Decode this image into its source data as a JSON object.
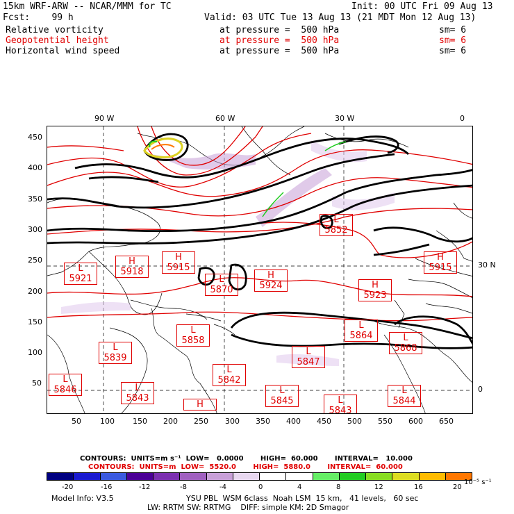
{
  "header": {
    "model_line": "15km WRF-ARW -- NCAR/MMM for TC",
    "init_line": "Init: 00 UTC Fri 09 Aug 13",
    "fcst_line": "Fcst:    99 h",
    "valid_line": "Valid: 03 UTC Tue 13 Aug 13 (21 MDT Mon 12 Aug 13)"
  },
  "fields": [
    {
      "name": "Relative vorticity",
      "level": "at pressure =  500 hPa",
      "sm": "sm= 6",
      "color": "#000000"
    },
    {
      "name": "Geopotential height",
      "level": "at pressure =  500 hPa",
      "sm": "sm= 6",
      "color": "#e00000"
    },
    {
      "name": "Horizontal wind speed",
      "level": "at pressure =  500 hPa",
      "sm": "sm= 6",
      "color": "#000000"
    }
  ],
  "map": {
    "top_labels": [
      "90 W",
      "60 W",
      "30 W",
      "0"
    ],
    "right_labels": [
      "30 N",
      "0"
    ],
    "y_ticks": [
      "450",
      "400",
      "350",
      "300",
      "250",
      "200",
      "150",
      "100",
      "50"
    ],
    "x_ticks": [
      "50",
      "100",
      "150",
      "200",
      "250",
      "300",
      "350",
      "400",
      "450",
      "500",
      "550",
      "600",
      "650"
    ],
    "centers": [
      {
        "type": "L",
        "value": "5852"
      },
      {
        "type": "L",
        "value": "5921"
      },
      {
        "type": "H",
        "value": "5918"
      },
      {
        "type": "H",
        "value": "5915"
      },
      {
        "type": "L",
        "value": "5870"
      },
      {
        "type": "H",
        "value": "5924"
      },
      {
        "type": "H",
        "value": "5923"
      },
      {
        "type": "H",
        "value": "5915"
      },
      {
        "type": "L",
        "value": "5858"
      },
      {
        "type": "L",
        "value": "5864"
      },
      {
        "type": "L",
        "value": "5839"
      },
      {
        "type": "L",
        "value": "5847"
      },
      {
        "type": "L",
        "value": "5868"
      },
      {
        "type": "L",
        "value": "5846"
      },
      {
        "type": "L",
        "value": "5842"
      },
      {
        "type": "L",
        "value": "5843"
      },
      {
        "type": "L",
        "value": "5845"
      },
      {
        "type": "L",
        "value": "5844"
      },
      {
        "type": "H",
        "value": ""
      },
      {
        "type": "L",
        "value": "5843"
      }
    ]
  },
  "contours": {
    "black_line": "CONTOURS:  UNITS=m s⁻¹  LOW=   0.0000       HIGH=  60.000       INTERVAL=   10.000",
    "red_line": "CONTOURS:  UNITS=m  LOW=  5520.0       HIGH=  5880.0       INTERVAL=  60.000"
  },
  "colorbar": {
    "colors": [
      "#000080",
      "#1a1ad0",
      "#3a5ae0",
      "#4b0096",
      "#7b2fb0",
      "#a060c0",
      "#c8a0d8",
      "#e8d8f0",
      "#ffffff",
      "#ffffff",
      "#66ee66",
      "#22cc22",
      "#88dd22",
      "#dddd22",
      "#ffbb00",
      "#ff7700"
    ],
    "labels": [
      "-20",
      "-16",
      "-12",
      "-8",
      "-4",
      "0",
      "4",
      "8",
      "12",
      "16",
      "20"
    ],
    "units": "10⁻⁵ s⁻¹"
  },
  "footer": {
    "model_info": "Model Info: V3.5",
    "line1": "YSU PBL  WSM 6class  Noah LSM  15 km,   41 levels,   60 sec",
    "line2": "LW: RRTM SW: RRTMG    DIFF: simple KM: 2D Smagor"
  }
}
